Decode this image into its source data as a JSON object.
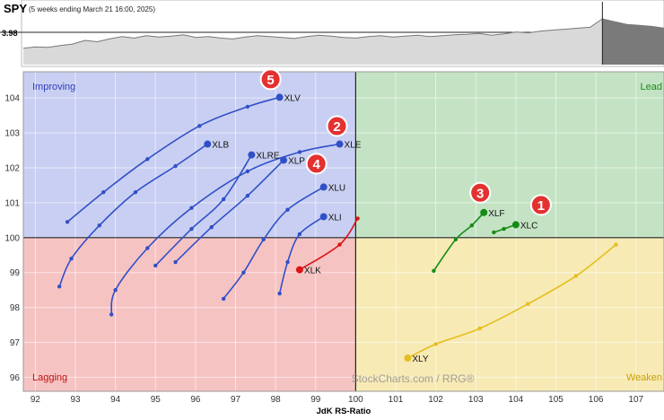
{
  "header": {
    "symbol": "SPY",
    "subtitle": "(5 weeks ending March 21 16:00, 2025)",
    "price_label": "3.98"
  },
  "chart_data": {
    "type": "scatter",
    "title": "",
    "xlabel": "JdK RS-Ratio",
    "ylabel": "",
    "xlim": [
      91.7,
      107.7
    ],
    "ylim": [
      95.6,
      104.75
    ],
    "x_ticks": [
      92,
      93,
      94,
      95,
      96,
      97,
      98,
      99,
      100,
      101,
      102,
      103,
      104,
      105,
      106,
      107
    ],
    "y_ticks": [
      96,
      97,
      98,
      99,
      100,
      101,
      102,
      103,
      104
    ],
    "grid": true,
    "quadrants": [
      {
        "name": "Improving",
        "color": "#c9cff2"
      },
      {
        "name": "Leading",
        "label": "Lead",
        "color": "#c4e3c4"
      },
      {
        "name": "Lagging",
        "color": "#f6c3c3"
      },
      {
        "name": "Weakening",
        "label": "Weaken",
        "color": "#f7eab5"
      }
    ],
    "series": [
      {
        "name": "XLV",
        "color": "#3050c8",
        "points": [
          [
            92.8,
            100.45
          ],
          [
            93.7,
            101.3
          ],
          [
            94.8,
            102.25
          ],
          [
            96.1,
            103.2
          ],
          [
            97.3,
            103.75
          ],
          [
            98.1,
            104.02
          ]
        ]
      },
      {
        "name": "XLB",
        "color": "#3050c8",
        "points": [
          [
            92.6,
            98.6
          ],
          [
            92.9,
            99.4
          ],
          [
            93.6,
            100.35
          ],
          [
            94.5,
            101.3
          ],
          [
            95.5,
            102.05
          ],
          [
            96.3,
            102.68
          ]
        ]
      },
      {
        "name": "XLE",
        "color": "#3050c8",
        "points": [
          [
            93.9,
            97.8
          ],
          [
            94.0,
            98.5
          ],
          [
            94.8,
            99.7
          ],
          [
            95.9,
            100.85
          ],
          [
            97.3,
            101.9
          ],
          [
            98.6,
            102.45
          ],
          [
            99.6,
            102.68
          ]
        ]
      },
      {
        "name": "XLRE",
        "color": "#3050c8",
        "points": [
          [
            95.0,
            99.2
          ],
          [
            95.9,
            100.25
          ],
          [
            96.7,
            101.1
          ],
          [
            97.4,
            102.37
          ]
        ]
      },
      {
        "name": "XLP",
        "color": "#3050c8",
        "points": [
          [
            95.5,
            99.3
          ],
          [
            96.4,
            100.3
          ],
          [
            97.3,
            101.2
          ],
          [
            98.2,
            102.22
          ]
        ]
      },
      {
        "name": "XLU",
        "color": "#3050c8",
        "points": [
          [
            96.7,
            98.25
          ],
          [
            97.2,
            99.0
          ],
          [
            97.7,
            99.95
          ],
          [
            98.3,
            100.8
          ],
          [
            99.2,
            101.45
          ]
        ]
      },
      {
        "name": "XLI",
        "color": "#3050c8",
        "points": [
          [
            98.1,
            98.4
          ],
          [
            98.3,
            99.3
          ],
          [
            98.6,
            100.1
          ],
          [
            99.2,
            100.6
          ]
        ]
      },
      {
        "name": "XLK",
        "color": "#dc1414",
        "points": [
          [
            100.05,
            100.55
          ],
          [
            99.6,
            99.8
          ],
          [
            98.6,
            99.08
          ]
        ]
      },
      {
        "name": "XLF",
        "color": "#168a16",
        "points": [
          [
            101.95,
            99.05
          ],
          [
            102.5,
            99.95
          ],
          [
            102.9,
            100.35
          ],
          [
            103.2,
            100.72
          ]
        ]
      },
      {
        "name": "XLC",
        "color": "#168a16",
        "points": [
          [
            103.45,
            100.15
          ],
          [
            103.7,
            100.25
          ],
          [
            104.0,
            100.37
          ]
        ]
      },
      {
        "name": "XLY",
        "color": "#e6be1e",
        "points": [
          [
            106.5,
            99.8
          ],
          [
            105.5,
            98.9
          ],
          [
            104.3,
            98.1
          ],
          [
            103.1,
            97.4
          ],
          [
            102.0,
            96.95
          ],
          [
            101.3,
            96.55
          ]
        ]
      }
    ],
    "callouts": [
      {
        "number": "1",
        "series": "XLC"
      },
      {
        "number": "2",
        "series": "XLE"
      },
      {
        "number": "3",
        "series": "XLF"
      },
      {
        "number": "4",
        "series": "XLU"
      },
      {
        "number": "5",
        "series": "XLV"
      }
    ],
    "watermark": "StockCharts.com / RRG®",
    "price_line": [
      35,
      38,
      37,
      41,
      44,
      52,
      49,
      55,
      60,
      57,
      62,
      59,
      61,
      64,
      58,
      60,
      57,
      55,
      59,
      62,
      60,
      58,
      56,
      60,
      63,
      61,
      58,
      57,
      60,
      62,
      59,
      61,
      63,
      60,
      62,
      64,
      65,
      67,
      63,
      66,
      70,
      68,
      72,
      74,
      76,
      78,
      80,
      98,
      92,
      86,
      84,
      82,
      78
    ]
  }
}
